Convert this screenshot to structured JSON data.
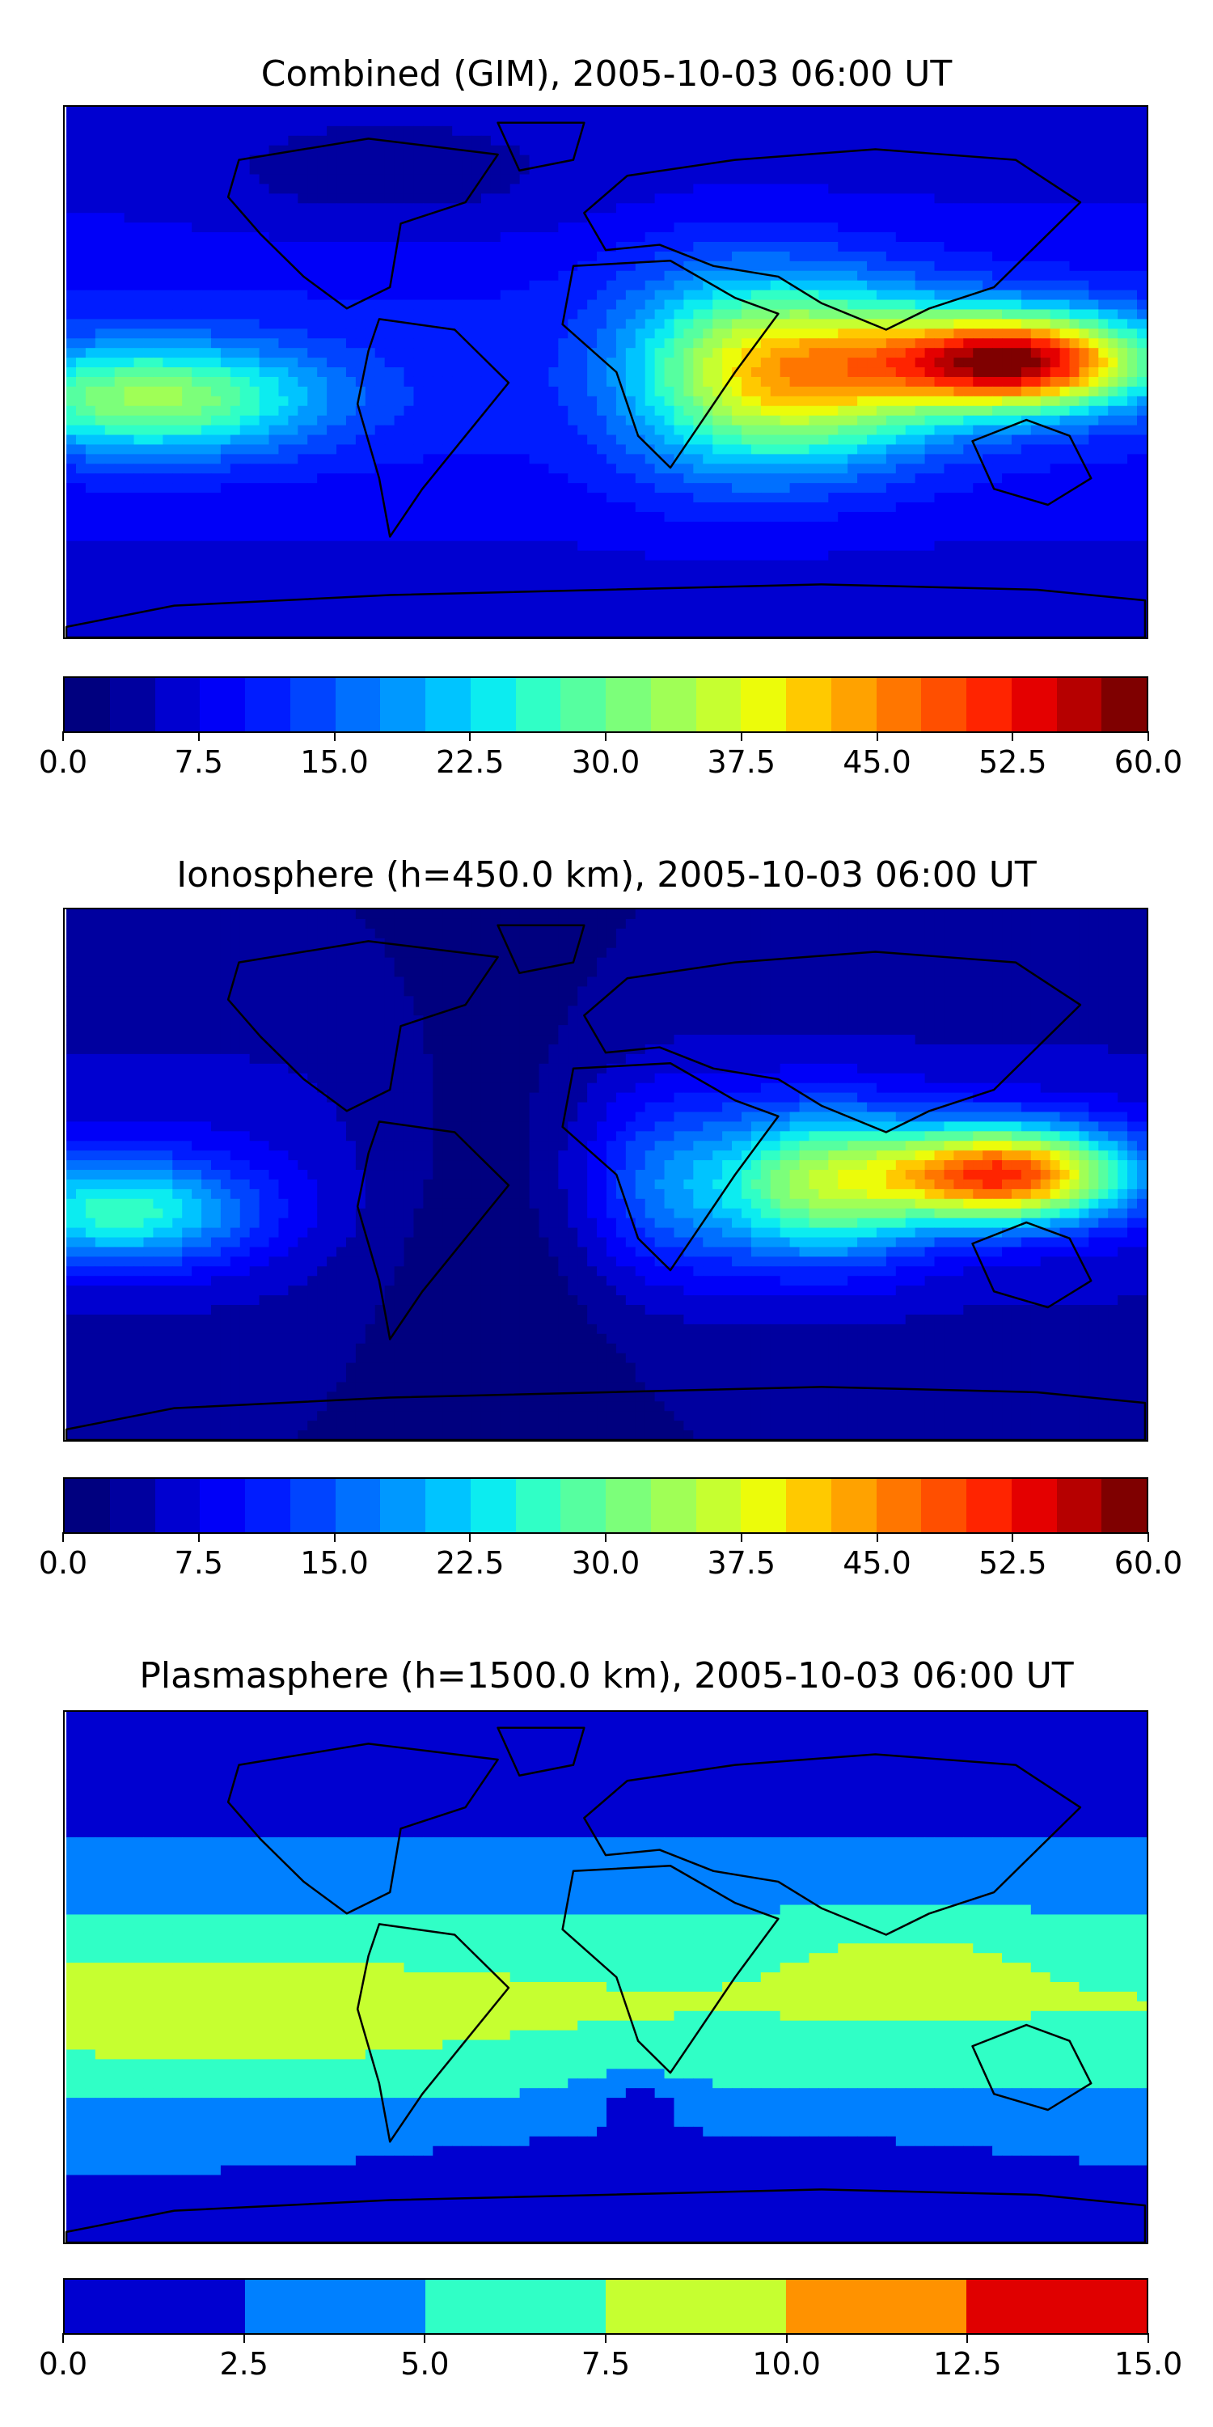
{
  "chart_data": [
    {
      "type": "heatmap",
      "title": "Combined (GIM), 2005-10-03 06:00 UT",
      "colorbar": {
        "min": 0.0,
        "max": 60.0,
        "levels": 24,
        "tick_labels": [
          "0.0",
          "7.5",
          "15.0",
          "22.5",
          "30.0",
          "37.5",
          "45.0",
          "52.5",
          "60.0"
        ],
        "colors": [
          "#00007f",
          "#00009f",
          "#0000d0",
          "#0000f8",
          "#001cff",
          "#0044ff",
          "#0070ff",
          "#0098ff",
          "#00c4ff",
          "#0cecf0",
          "#30ffc6",
          "#56ffa0",
          "#7cff7a",
          "#a0ff56",
          "#c6ff30",
          "#ecfc0a",
          "#ffc900",
          "#ffa200",
          "#ff7600",
          "#ff4f00",
          "#ff2400",
          "#e40000",
          "#b60000",
          "#7f0000"
        ]
      },
      "grid": false,
      "features": [
        {
          "label": "peak over South/Southeast Asia",
          "value": 55
        },
        {
          "label": "secondary maximum over eastern Pacific",
          "value": 32
        },
        {
          "label": "background mid latitudes",
          "value": 10
        },
        {
          "label": "polar regions",
          "value": 4
        }
      ]
    },
    {
      "type": "heatmap",
      "title": "Ionosphere  (h=450.0 km), 2005-10-03 06:00 UT",
      "colorbar": {
        "min": 0.0,
        "max": 60.0,
        "levels": 24,
        "tick_labels": [
          "0.0",
          "7.5",
          "15.0",
          "22.5",
          "30.0",
          "37.5",
          "45.0",
          "52.5",
          "60.0"
        ],
        "colors": [
          "#00007f",
          "#00009f",
          "#0000d0",
          "#0000f8",
          "#001cff",
          "#0044ff",
          "#0070ff",
          "#0098ff",
          "#00c4ff",
          "#0cecf0",
          "#30ffc6",
          "#56ffa0",
          "#7cff7a",
          "#a0ff56",
          "#c6ff30",
          "#ecfc0a",
          "#ffc900",
          "#ffa200",
          "#ff7600",
          "#ff4f00",
          "#ff2400",
          "#e40000",
          "#b60000",
          "#7f0000"
        ]
      },
      "grid": false,
      "features": [
        {
          "label": "peak over South/Southeast Asia",
          "value": 48
        },
        {
          "label": "secondary maximum over eastern Pacific",
          "value": 27
        },
        {
          "label": "night side Americas/Atlantic",
          "value": 3
        },
        {
          "label": "polar regions",
          "value": 2
        }
      ]
    },
    {
      "type": "heatmap",
      "title": "Plasmasphere (h=1500.0 km), 2005-10-03 06:00 UT",
      "colorbar": {
        "min": 0.0,
        "max": 15.0,
        "levels": 6,
        "tick_labels": [
          "0.0",
          "2.5",
          "5.0",
          "7.5",
          "10.0",
          "12.5",
          "15.0"
        ],
        "colors": [
          "#0000d0",
          "#0080ff",
          "#30ffc6",
          "#c6ff30",
          "#ff9200",
          "#e00000"
        ]
      },
      "grid": false,
      "features": [
        {
          "label": "low latitude band",
          "value": 8.5
        },
        {
          "label": "tropical belt",
          "value": 6
        },
        {
          "label": "southern mid latitudes",
          "value": 4
        },
        {
          "label": "polar regions",
          "value": 1.5
        }
      ]
    }
  ]
}
